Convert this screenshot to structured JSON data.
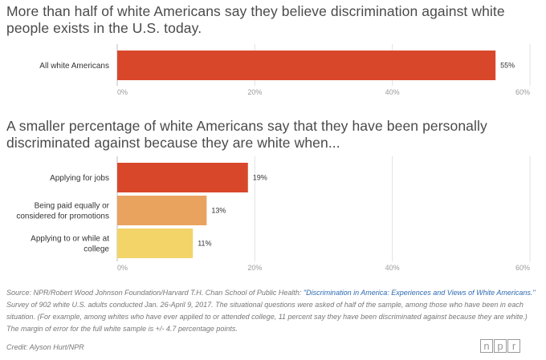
{
  "chart1_title": "More than half of white Americans say they believe discrimination against white people exists in the U.S. today.",
  "chart2_title": "A smaller percentage of white Americans say that they have been personally discriminated against because they are white when...",
  "source": {
    "prefix": "Source: NPR/Robert Wood Johnson Foundation/Harvard T.H. Chan School of Public Health: ",
    "link_text": "\"Discrimination in America: Experiences and Views of White Americans.\"",
    "suffix": " Survey of 902 white U.S. adults conducted Jan. 26-April 9, 2017. The situational questions were asked of half of the sample, among those who have been in each situation. (For example, among whites who have ever applied to or attended college, 11 percent say they have been discriminated against because they are white.) The margin of error for the full white sample is +/- 4.7 percentage points."
  },
  "credit": "Credit: Alyson Hurt/NPR",
  "logo_letters": [
    "n",
    "p",
    "r"
  ],
  "chart_data": [
    {
      "type": "bar",
      "orientation": "horizontal",
      "title": "More than half of white Americans say they believe discrimination against white people exists in the U.S. today.",
      "categories": [
        [
          "All white Americans"
        ]
      ],
      "values": [
        55
      ],
      "value_labels": [
        "55%"
      ],
      "colors": [
        "#d9472b"
      ],
      "xlim": [
        0,
        60
      ],
      "ticks": [
        0,
        20,
        40,
        60
      ],
      "tick_labels": [
        "0%",
        "20%",
        "40%",
        "60%"
      ],
      "grid": true
    },
    {
      "type": "bar",
      "orientation": "horizontal",
      "title": "A smaller percentage of white Americans say that they have been personally discriminated against because they are white when...",
      "categories": [
        [
          "Applying for jobs"
        ],
        [
          "Being paid equally or",
          "considered for promotions"
        ],
        [
          "Applying to or while at",
          "college"
        ]
      ],
      "values": [
        19,
        13,
        11
      ],
      "value_labels": [
        "19%",
        "13%",
        "11%"
      ],
      "colors": [
        "#d9472b",
        "#e9a35f",
        "#f3d468"
      ],
      "xlim": [
        0,
        60
      ],
      "ticks": [
        0,
        20,
        40,
        60
      ],
      "tick_labels": [
        "0%",
        "20%",
        "40%",
        "60%"
      ],
      "grid": true
    }
  ]
}
